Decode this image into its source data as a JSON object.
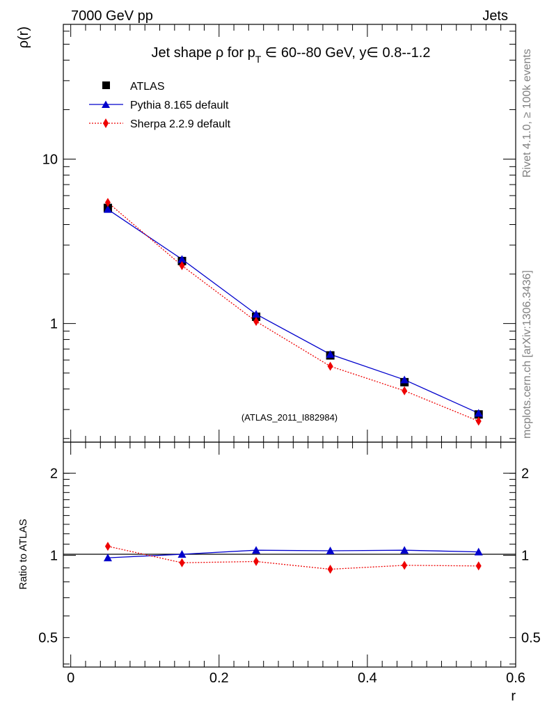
{
  "header": {
    "left": "7000 GeV pp",
    "right": "Jets"
  },
  "side_labels": {
    "rivet": "Rivet 4.1.0, ≥ 100k events",
    "mcplots": "mcplots.cern.ch [arXiv:1306.3436]"
  },
  "colors": {
    "atlas": "#000000",
    "pythia": "#0000cc",
    "sherpa": "#ee0000",
    "watermark": "#a0a0a0"
  },
  "chart_data": [
    {
      "type": "line",
      "panel": "main",
      "title": {
        "prefix": "Jet shape ρ for p",
        "sub": "T",
        "suffix": " ∈ 60--80 GeV, y∈ 0.8--1.2"
      },
      "ylabel": "ρ(r)",
      "yscale": "log",
      "ylim": [
        0.19,
        66
      ],
      "xlim": [
        -0.01,
        0.6
      ],
      "y_tick_labels": [
        {
          "value": 1,
          "label": "1"
        },
        {
          "value": 10,
          "label": "10"
        }
      ],
      "watermark": "(ATLAS_2011_I882984)",
      "legend_position": "top-left",
      "series": [
        {
          "name": "ATLAS",
          "marker": "square",
          "x": [
            0.05,
            0.15,
            0.25,
            0.35,
            0.45,
            0.55
          ],
          "y": [
            5.05,
            2.4,
            1.1,
            0.64,
            0.44,
            0.28
          ]
        },
        {
          "name": "Pythia 8.165 default",
          "marker": "triangle",
          "line": "solid",
          "x": [
            0.05,
            0.15,
            0.25,
            0.35,
            0.45,
            0.55
          ],
          "y": [
            4.95,
            2.46,
            1.14,
            0.65,
            0.455,
            0.285
          ]
        },
        {
          "name": "Sherpa 2.2.9 default",
          "marker": "diamond",
          "line": "dotted",
          "x": [
            0.05,
            0.15,
            0.25,
            0.35,
            0.45,
            0.55
          ],
          "y": [
            5.45,
            2.25,
            1.03,
            0.55,
            0.39,
            0.255
          ]
        }
      ]
    },
    {
      "type": "line",
      "panel": "ratio",
      "ylabel": "Ratio to ATLAS",
      "xlabel": "r",
      "yscale": "log",
      "ylim": [
        0.39,
        2.6
      ],
      "xlim": [
        -0.01,
        0.6
      ],
      "x_tick_labels": [
        {
          "value": 0,
          "label": "0"
        },
        {
          "value": 0.2,
          "label": "0.2"
        },
        {
          "value": 0.4,
          "label": "0.4"
        },
        {
          "value": 0.6,
          "label": "0.6"
        }
      ],
      "y_tick_labels": [
        {
          "value": 0.5,
          "label": "0.5"
        },
        {
          "value": 1,
          "label": "1"
        },
        {
          "value": 2,
          "label": "2"
        }
      ],
      "series": [
        {
          "name": "Pythia 8.165 default",
          "marker": "triangle",
          "line": "solid",
          "x": [
            0.05,
            0.15,
            0.25,
            0.35,
            0.45,
            0.55
          ],
          "y": [
            0.98,
            1.01,
            1.045,
            1.04,
            1.045,
            1.03
          ],
          "err": [
            0.006,
            0.012,
            0.02,
            0.02,
            0.022,
            0.02
          ]
        },
        {
          "name": "Sherpa 2.2.9 default",
          "marker": "diamond",
          "line": "dotted",
          "x": [
            0.05,
            0.15,
            0.25,
            0.35,
            0.45,
            0.55
          ],
          "y": [
            1.08,
            0.94,
            0.95,
            0.89,
            0.92,
            0.915
          ],
          "err": [
            0.008,
            0.012,
            0.02,
            0.02,
            0.022,
            0.02
          ]
        }
      ]
    }
  ]
}
